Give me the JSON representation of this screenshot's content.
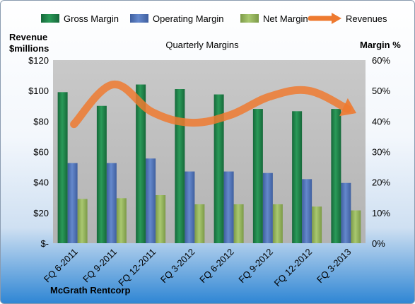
{
  "chart_data": {
    "type": "bar",
    "title": "Quarterly Margins",
    "categories": [
      "FQ 6-2011",
      "FQ 9-2011",
      "FQ 12-2011",
      "FQ 3-2012",
      "FQ 6-2012",
      "FQ 9-2012",
      "FQ 12-2012",
      "FQ 3-2013"
    ],
    "series": [
      {
        "name": "Gross Margin",
        "axis": "left",
        "color": "#1e7a45",
        "values": [
          99,
          90,
          104,
          101,
          97.5,
          88,
          86.5,
          88
        ]
      },
      {
        "name": "Operating Margin",
        "axis": "left",
        "color": "#4f73b6",
        "values": [
          52.5,
          52.5,
          55.5,
          47,
          47,
          46,
          42,
          39.5
        ]
      },
      {
        "name": "Net Margin",
        "axis": "left",
        "color": "#93b35a",
        "values": [
          29,
          29.5,
          31.5,
          25.5,
          25.5,
          25.5,
          24,
          21.5
        ]
      },
      {
        "name": "Revenues",
        "axis": "right",
        "type": "line",
        "color": "#ee7a30",
        "values": [
          39,
          52,
          43,
          39.5,
          42,
          48,
          50,
          44
        ]
      }
    ],
    "ylabel_left": "Revenue $millions",
    "ylabel_right": "Margin %",
    "y_left_ticks": [
      "$-",
      "$20",
      "$40",
      "$60",
      "$80",
      "$100",
      "$120"
    ],
    "y_right_ticks": [
      "0%",
      "10%",
      "20%",
      "30%",
      "40%",
      "50%",
      "60%"
    ],
    "ylim_left": [
      0,
      120
    ],
    "ylim_right": [
      0,
      60
    ],
    "grid": false,
    "legend_position": "top"
  },
  "company": "McGrath Rentcorp",
  "axis_title_left_line1": "Revenue",
  "axis_title_left_line2": "$millions",
  "axis_title_right": "Margin %",
  "legend_revenues_icon": "arrow-icon"
}
